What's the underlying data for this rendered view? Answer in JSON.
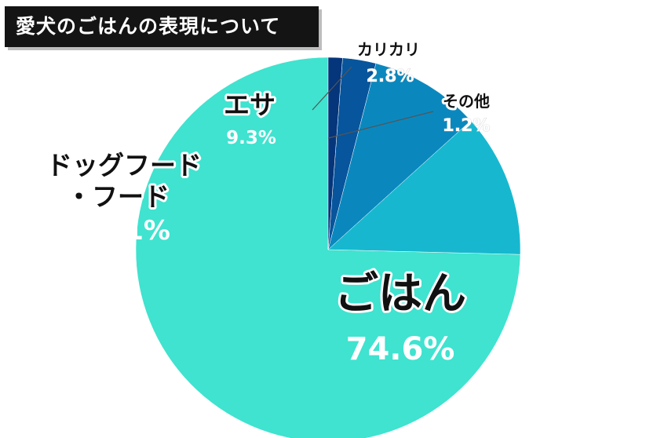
{
  "chart_data": {
    "type": "pie",
    "title": "愛犬のごはんの表現について",
    "slices": [
      {
        "label": "ごはん",
        "value": 74.6,
        "value_label": "74.6%",
        "color": "#3fe3cf"
      },
      {
        "label": "ドッグフード・フード",
        "label_lines": [
          "ドッグフード",
          "・フード"
        ],
        "value": 12.1,
        "value_label": "12.1%",
        "color": "#17b8cf"
      },
      {
        "label": "エサ",
        "value": 9.3,
        "value_label": "9.3%",
        "color": "#0a88be"
      },
      {
        "label": "カリカリ",
        "value": 2.8,
        "value_label": "2.8%",
        "color": "#07559c"
      },
      {
        "label": "その他",
        "value": 1.2,
        "value_label": "1.2%",
        "color": "#05357a"
      }
    ],
    "start": "12 o'clock",
    "direction": "counterclockwise",
    "legend": "none"
  }
}
